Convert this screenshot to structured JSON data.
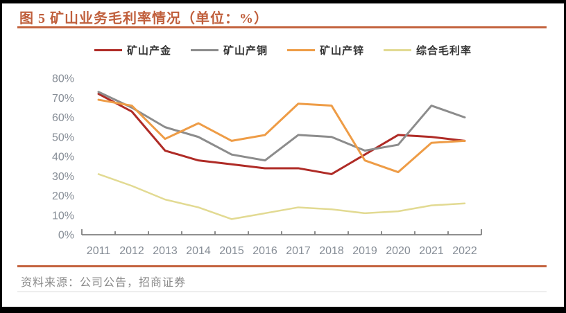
{
  "header": {
    "title": "图 5 矿山业务毛利率情况（单位：%）"
  },
  "footer": {
    "source": "资料来源：公司公告，招商证券"
  },
  "colors": {
    "title": "#C05F3C",
    "accent_rule": "#C3633E",
    "axis": "#7F7F7F",
    "tick_label": "#868D96",
    "legend_text": "#333333",
    "source_text": "#8A8A8A",
    "series_gold": "#AF2B26",
    "series_copper": "#8C8C8C",
    "series_zinc": "#EE9C46",
    "series_composite": "#E2DA92"
  },
  "chart_data": {
    "type": "line",
    "title": "图 5 矿山业务毛利率情况（单位：%）",
    "categories": [
      "2011",
      "2012",
      "2013",
      "2014",
      "2015",
      "2016",
      "2017",
      "2018",
      "2019",
      "2020",
      "2021",
      "2022"
    ],
    "series": [
      {
        "name": "矿山产金",
        "color": "#AF2B26",
        "width": 3,
        "values": [
          72,
          63,
          43,
          38,
          36,
          34,
          34,
          31,
          41,
          51,
          50,
          48
        ]
      },
      {
        "name": "矿山产铜",
        "color": "#8C8C8C",
        "width": 3,
        "values": [
          73,
          65,
          55,
          50,
          41,
          38,
          51,
          50,
          43,
          46,
          66,
          60
        ]
      },
      {
        "name": "矿山产锌",
        "color": "#EE9C46",
        "width": 3,
        "values": [
          69,
          66,
          49,
          57,
          48,
          51,
          67,
          66,
          38,
          32,
          47,
          48
        ]
      },
      {
        "name": "综合毛利率",
        "color": "#E2DA92",
        "width": 2.5,
        "values": [
          31,
          25,
          18,
          14,
          8,
          11,
          14,
          13,
          11,
          12,
          15,
          16
        ]
      }
    ],
    "xlabel": "",
    "ylabel": "",
    "ylim": [
      0,
      80
    ],
    "ytick_step": 10,
    "ytick_suffix": "%",
    "grid": false,
    "legend_position": "top"
  }
}
